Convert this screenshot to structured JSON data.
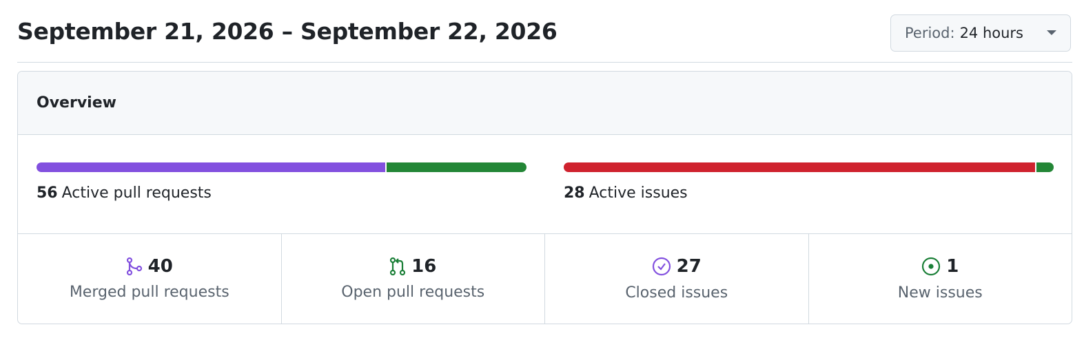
{
  "header": {
    "title": "September 21, 2026 – September 22, 2026",
    "period_label": "Period:",
    "period_value": "24 hours"
  },
  "overview": {
    "title": "Overview",
    "pull_requests": {
      "count": 56,
      "label": "Active pull requests"
    },
    "issues": {
      "count": 28,
      "label": "Active issues"
    },
    "stats": [
      {
        "count": 40,
        "label": "Merged pull requests",
        "icon_color": "#8250df",
        "bar_color": "#8250df"
      },
      {
        "count": 16,
        "label": "Open pull requests",
        "icon_color": "#1a7f37",
        "bar_color": "#238636"
      },
      {
        "count": 27,
        "label": "Closed issues",
        "icon_color": "#8250df",
        "bar_color": "#cf222e"
      },
      {
        "count": 1,
        "label": "New issues",
        "icon_color": "#1a7f37",
        "bar_color": "#238636"
      }
    ]
  }
}
